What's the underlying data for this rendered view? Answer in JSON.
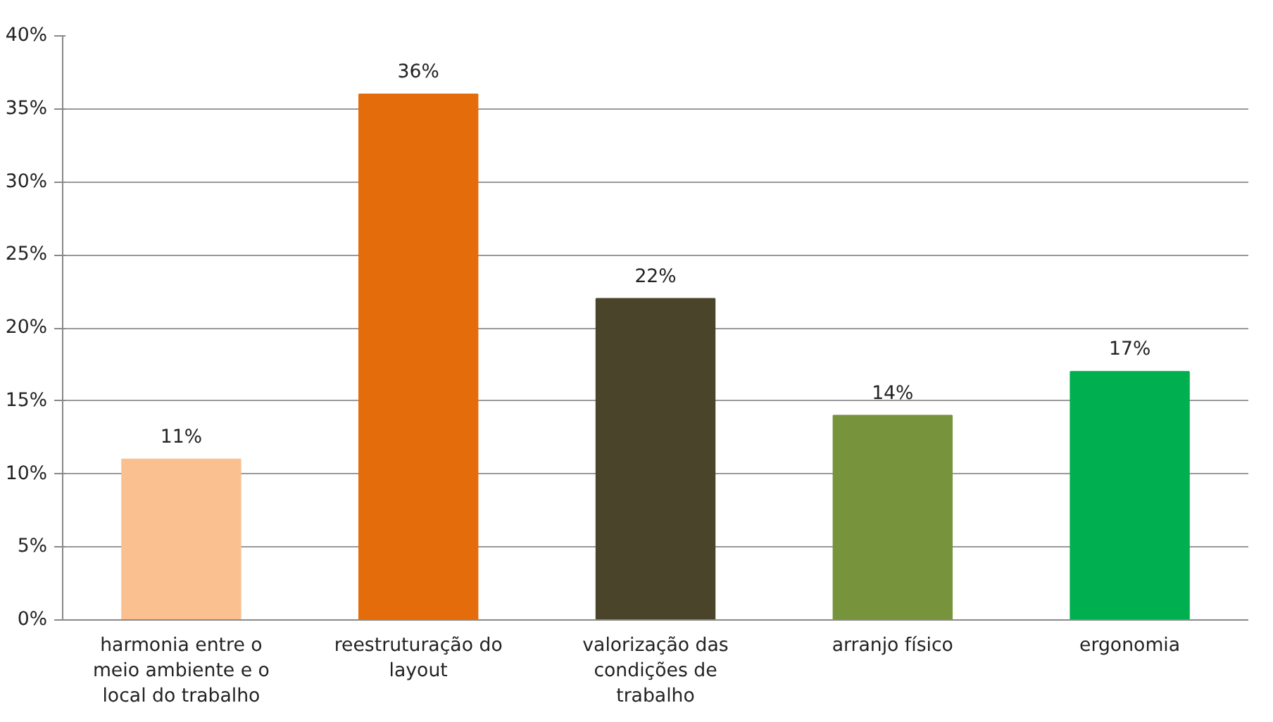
{
  "chart_data": {
    "type": "bar",
    "categories": [
      "harmonia entre o meio ambiente e o local do trabalho",
      "reestruturação do layout",
      "valorização das condições de trabalho",
      "arranjo físico",
      "ergonomia"
    ],
    "values": [
      11,
      36,
      22,
      14,
      17
    ],
    "colors": [
      "#fac090",
      "#e46c0a",
      "#4a452a",
      "#77933c",
      "#00b050"
    ],
    "value_labels": [
      "11%",
      "36%",
      "22%",
      "14%",
      "17%"
    ],
    "ylim": [
      0,
      40
    ],
    "yticks": [
      {
        "value": 0,
        "label": "0%"
      },
      {
        "value": 5,
        "label": "5%"
      },
      {
        "value": 10,
        "label": "10%"
      },
      {
        "value": 15,
        "label": "15%"
      },
      {
        "value": 20,
        "label": "20%"
      },
      {
        "value": 25,
        "label": "25%"
      },
      {
        "value": 30,
        "label": "30%"
      },
      {
        "value": 35,
        "label": "35%"
      },
      {
        "value": 40,
        "label": "40%"
      }
    ],
    "grid": "y"
  }
}
